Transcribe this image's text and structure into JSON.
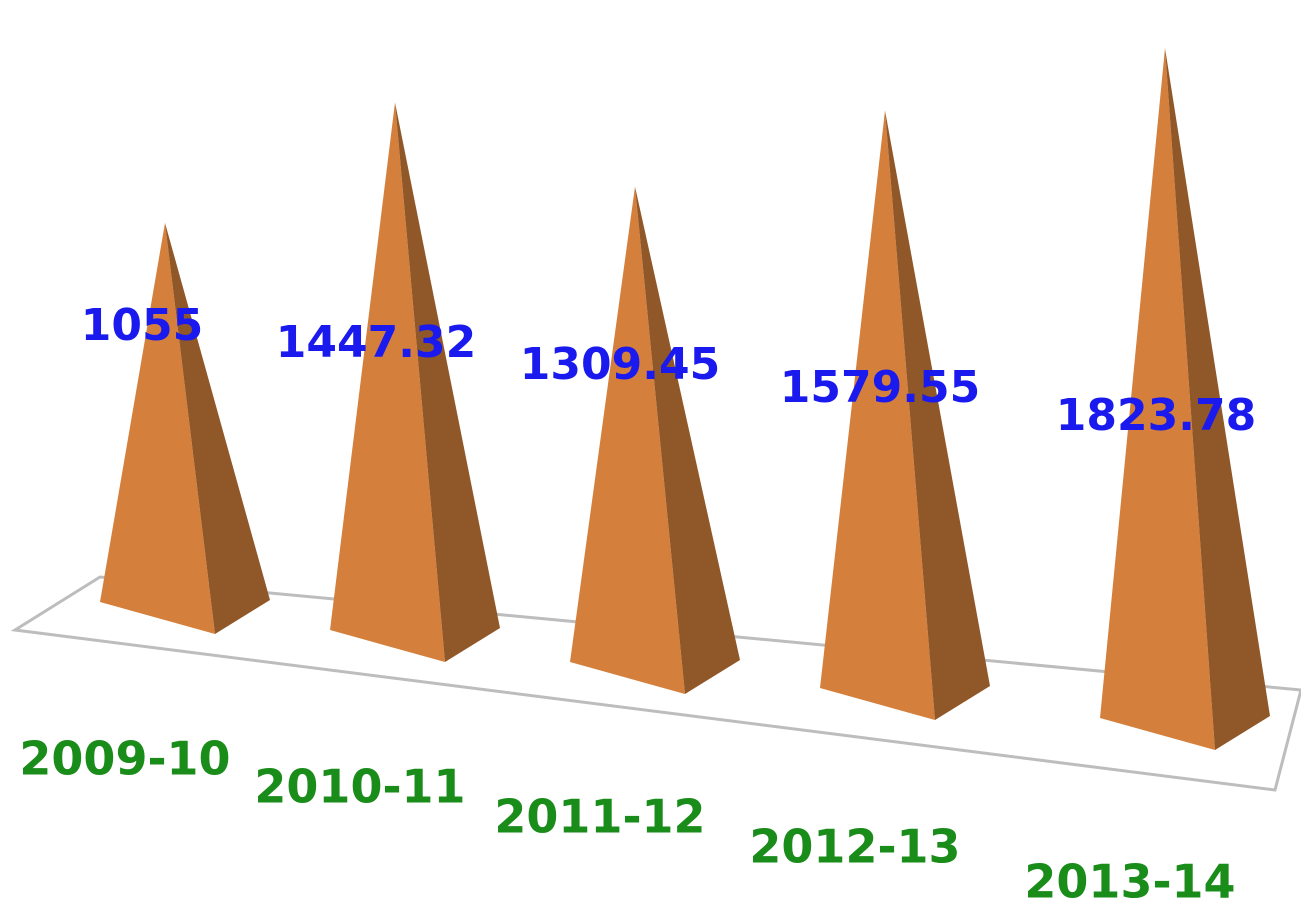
{
  "chart_data": {
    "type": "bar",
    "categories": [
      "2009-10",
      "2010-11",
      "2011-12",
      "2012-13",
      "2013-14"
    ],
    "values": [
      1055,
      1447.32,
      1309.45,
      1579.55,
      1823.78
    ],
    "color": "#d4803c",
    "value_label_color": "#1a1aee",
    "category_label_color": "#1a8c1a"
  }
}
